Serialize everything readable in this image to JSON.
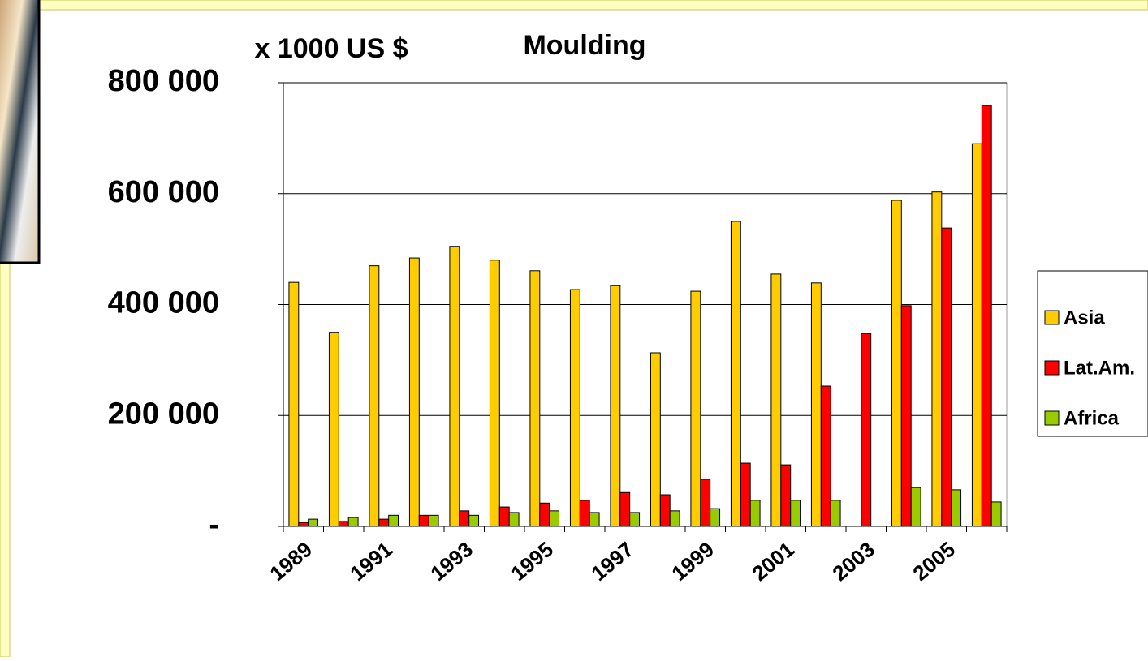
{
  "chart_data": {
    "type": "bar",
    "title": "Moulding",
    "y_label": "x 1000 US $",
    "categories": [
      "1989",
      null,
      "1991",
      null,
      "1993",
      null,
      "1995",
      null,
      "1997",
      null,
      "1999",
      null,
      "2001",
      null,
      "2003",
      null,
      "2005",
      null
    ],
    "series": [
      {
        "name": "Asia",
        "color": "#ffcc00",
        "values": [
          440000,
          350000,
          470000,
          484000,
          505000,
          480000,
          461000,
          427000,
          434000,
          313000,
          424000,
          550000,
          455000,
          439000,
          0,
          588000,
          603000,
          690000
        ]
      },
      {
        "name": "Lat.Am.",
        "color": "#ff0000",
        "values": [
          7000,
          9000,
          13000,
          20000,
          28000,
          35000,
          42000,
          47000,
          61000,
          57000,
          85000,
          114000,
          111000,
          253000,
          348000,
          398000,
          538000,
          759000
        ]
      },
      {
        "name": "Africa",
        "color": "#99cc00",
        "values": [
          13000,
          16000,
          20000,
          20000,
          20000,
          25000,
          28000,
          25000,
          25000,
          28000,
          32000,
          47000,
          47000,
          47000,
          0,
          70000,
          66000,
          44000
        ]
      }
    ],
    "ylim": [
      0,
      800000
    ],
    "yticks": [
      {
        "value": 0,
        "label": "-"
      },
      {
        "value": 200000,
        "label": "200 000"
      },
      {
        "value": 400000,
        "label": "400 000"
      },
      {
        "value": 600000,
        "label": "600 000"
      },
      {
        "value": 800000,
        "label": "800 000"
      }
    ],
    "grid": true,
    "legend": "right"
  }
}
